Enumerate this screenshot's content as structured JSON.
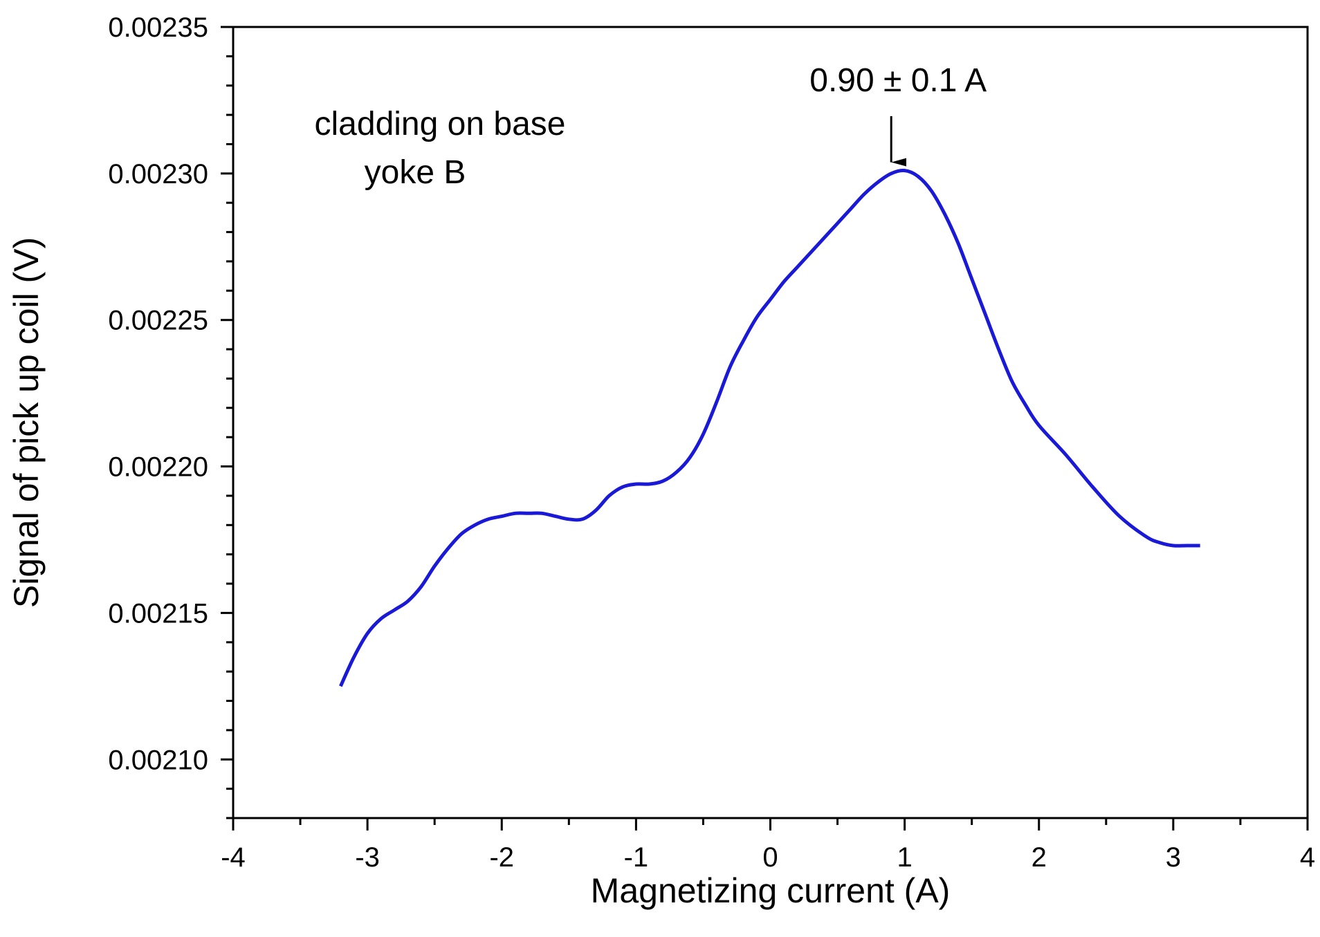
{
  "chart_data": {
    "type": "line",
    "xlabel": "Magnetizing current  (A)",
    "ylabel": "Signal of pick up coil  (V)",
    "xlim": [
      -4,
      4
    ],
    "ylim": [
      0.00208,
      0.00235
    ],
    "x_ticks": [
      -4,
      -3,
      -2,
      -1,
      0,
      1,
      2,
      3,
      4
    ],
    "x_tick_labels": [
      "-4",
      "-3",
      "-2",
      "-1",
      "0",
      "1",
      "2",
      "3",
      "4"
    ],
    "y_ticks": [
      0.0021,
      0.00215,
      0.0022,
      0.00225,
      0.0023,
      0.00235
    ],
    "y_tick_labels": [
      "0.00210",
      "0.00215",
      "0.00220",
      "0.00225",
      "0.00230",
      "0.00235"
    ],
    "grid": false,
    "legend": "none",
    "series": [
      {
        "color": "#1a1ad6",
        "x": [
          -3.2,
          -3.1,
          -3.0,
          -2.9,
          -2.8,
          -2.7,
          -2.6,
          -2.5,
          -2.4,
          -2.3,
          -2.2,
          -2.1,
          -2.0,
          -1.9,
          -1.8,
          -1.7,
          -1.6,
          -1.5,
          -1.4,
          -1.3,
          -1.2,
          -1.1,
          -1.0,
          -0.9,
          -0.8,
          -0.7,
          -0.6,
          -0.5,
          -0.4,
          -0.3,
          -0.2,
          -0.1,
          0.0,
          0.1,
          0.2,
          0.3,
          0.4,
          0.5,
          0.6,
          0.7,
          0.8,
          0.9,
          1.0,
          1.1,
          1.2,
          1.3,
          1.4,
          1.5,
          1.6,
          1.7,
          1.8,
          1.9,
          2.0,
          2.2,
          2.4,
          2.6,
          2.8,
          2.9,
          3.0,
          3.1,
          3.2
        ],
        "y": [
          0.002125,
          0.002135,
          0.002143,
          0.002148,
          0.002151,
          0.002154,
          0.002159,
          0.002166,
          0.002172,
          0.002177,
          0.00218,
          0.002182,
          0.002183,
          0.002184,
          0.002184,
          0.002184,
          0.002183,
          0.002182,
          0.002182,
          0.002185,
          0.00219,
          0.002193,
          0.002194,
          0.002194,
          0.002195,
          0.002198,
          0.002203,
          0.002211,
          0.002222,
          0.002234,
          0.002243,
          0.002251,
          0.002257,
          0.002263,
          0.002268,
          0.002273,
          0.002278,
          0.002283,
          0.002288,
          0.002293,
          0.002297,
          0.0023,
          0.002301,
          0.002299,
          0.002294,
          0.002286,
          0.002276,
          0.002264,
          0.002252,
          0.00224,
          0.002229,
          0.002221,
          0.002214,
          0.002204,
          0.002193,
          0.002183,
          0.002176,
          0.002174,
          0.002173,
          0.002173,
          0.002173
        ]
      }
    ],
    "annotations": [
      {
        "text": "0.90 ± 0.1 A",
        "x": 0.9,
        "y": 0.002301,
        "arrow": true
      },
      {
        "text": "cladding on base",
        "lines": [
          "cladding on base",
          "yoke B"
        ]
      }
    ]
  }
}
